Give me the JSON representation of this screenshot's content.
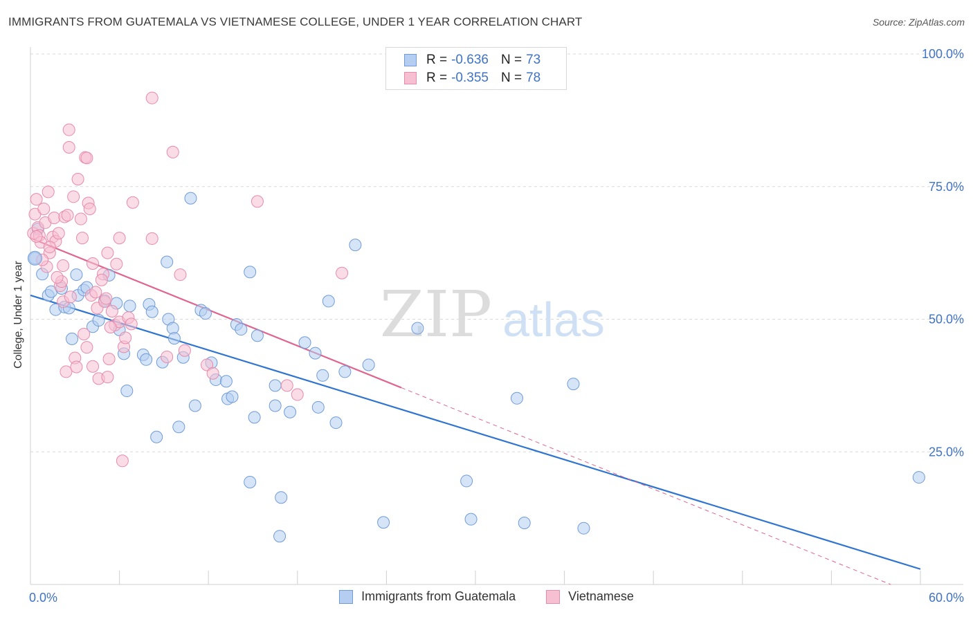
{
  "header": {
    "title": "IMMIGRANTS FROM GUATEMALA VS VIETNAMESE COLLEGE, UNDER 1 YEAR CORRELATION CHART",
    "source": "Source: ZipAtlas.com"
  },
  "watermark": {
    "zip": "ZIP",
    "atlas": "atlas"
  },
  "legend": {
    "rows": [
      {
        "r_label": "R =",
        "r_value": "-0.636",
        "n_label": "N =",
        "n_value": "73"
      },
      {
        "r_label": "R =",
        "r_value": "-0.355",
        "n_label": "N =",
        "n_value": "78"
      }
    ]
  },
  "colors": {
    "blue_fill": "#b4cdf0",
    "blue_stroke": "#6f9bd8",
    "blue_line": "#2f74d0",
    "pink_fill": "#f6c0d2",
    "pink_stroke": "#e88aaa",
    "pink_line": "#e0648e",
    "axis_text": "#3f73c4",
    "grid": "#d9d9d9"
  },
  "chart_data": {
    "type": "scatter",
    "title": "IMMIGRANTS FROM GUATEMALA VS VIETNAMESE COLLEGE, UNDER 1 YEAR CORRELATION CHART",
    "xlabel": "",
    "ylabel": "College, Under 1 year",
    "xlim": [
      0,
      60
    ],
    "ylim": [
      0,
      100
    ],
    "x_tick_labels": [
      "0.0%",
      "60.0%"
    ],
    "y_tick_labels": [
      "100.0%",
      "75.0%",
      "50.0%",
      "25.0%"
    ],
    "y_ticks": [
      100,
      75,
      50,
      25
    ],
    "series": [
      {
        "name": "Immigrants from Guatemala",
        "color": "blue",
        "trend": {
          "x": [
            0,
            60
          ],
          "y": [
            54.5,
            2.9
          ],
          "dashed_from": null
        },
        "points": [
          [
            0.3,
            61.5
          ],
          [
            0.5,
            67
          ],
          [
            0.8,
            58.5
          ],
          [
            1.2,
            54.5
          ],
          [
            1.4,
            55.2
          ],
          [
            1.7,
            51.8
          ],
          [
            2.1,
            55.8
          ],
          [
            2.3,
            52.3
          ],
          [
            2.6,
            52.1
          ],
          [
            2.8,
            46.3
          ],
          [
            3.2,
            54.5
          ],
          [
            3.1,
            58.4
          ],
          [
            3.6,
            55.5
          ],
          [
            3.8,
            56
          ],
          [
            4.2,
            48.6
          ],
          [
            4.6,
            49.8
          ],
          [
            5.0,
            53.5
          ],
          [
            5.3,
            58.3
          ],
          [
            5.8,
            53
          ],
          [
            6.0,
            48
          ],
          [
            6.3,
            43.5
          ],
          [
            6.5,
            36.5
          ],
          [
            6.7,
            52.5
          ],
          [
            7.6,
            43.3
          ],
          [
            7.8,
            42.4
          ],
          [
            8.0,
            52.8
          ],
          [
            8.2,
            51.4
          ],
          [
            8.5,
            27.8
          ],
          [
            8.9,
            41.9
          ],
          [
            9.2,
            60.8
          ],
          [
            9.3,
            50
          ],
          [
            9.6,
            48.3
          ],
          [
            9.7,
            46.4
          ],
          [
            10.0,
            29.7
          ],
          [
            10.3,
            42.8
          ],
          [
            10.8,
            72.8
          ],
          [
            11.1,
            33.7
          ],
          [
            11.5,
            51.7
          ],
          [
            11.8,
            51.1
          ],
          [
            12.2,
            41.8
          ],
          [
            12.5,
            38.6
          ],
          [
            13.2,
            38.3
          ],
          [
            13.3,
            35
          ],
          [
            13.6,
            35.4
          ],
          [
            13.9,
            49
          ],
          [
            14.2,
            48.1
          ],
          [
            14.8,
            58.9
          ],
          [
            15.1,
            31.5
          ],
          [
            15.3,
            46.9
          ],
          [
            14.8,
            19.3
          ],
          [
            16.5,
            37.5
          ],
          [
            16.5,
            33.7
          ],
          [
            16.8,
            9.1
          ],
          [
            16.9,
            16.4
          ],
          [
            17.5,
            32.5
          ],
          [
            18.5,
            45.6
          ],
          [
            19.2,
            43.6
          ],
          [
            19.4,
            33.4
          ],
          [
            19.7,
            39.4
          ],
          [
            20.1,
            53.4
          ],
          [
            20.6,
            30.5
          ],
          [
            21.2,
            40.1
          ],
          [
            21.9,
            64
          ],
          [
            22.8,
            41.4
          ],
          [
            23.8,
            11.7
          ],
          [
            26.1,
            48.3
          ],
          [
            29.4,
            19.5
          ],
          [
            29.7,
            12.3
          ],
          [
            32.8,
            35.1
          ],
          [
            33.3,
            11.6
          ],
          [
            36.6,
            37.8
          ],
          [
            37.3,
            10.6
          ],
          [
            59.9,
            20.2
          ]
        ]
      },
      {
        "name": "Vietnamese",
        "color": "pink",
        "trend": {
          "x": [
            0,
            25,
            58
          ],
          "y": [
            65.3,
            37.1,
            0
          ],
          "dashed_from": 25
        },
        "points": [
          [
            0.2,
            66.2
          ],
          [
            0.3,
            69.8
          ],
          [
            0.4,
            72.6
          ],
          [
            0.5,
            67.3
          ],
          [
            0.6,
            65.8
          ],
          [
            0.7,
            64.5
          ],
          [
            0.9,
            70.8
          ],
          [
            1.0,
            68.2
          ],
          [
            1.1,
            59.9
          ],
          [
            1.2,
            74
          ],
          [
            1.3,
            62.5
          ],
          [
            1.5,
            65.5
          ],
          [
            1.6,
            69.1
          ],
          [
            1.7,
            64.7
          ],
          [
            1.9,
            66.2
          ],
          [
            2.0,
            56.3
          ],
          [
            2.1,
            57.1
          ],
          [
            2.2,
            60.1
          ],
          [
            2.2,
            53.3
          ],
          [
            2.3,
            69.3
          ],
          [
            2.4,
            40.1
          ],
          [
            2.5,
            69.6
          ],
          [
            2.6,
            85.7
          ],
          [
            2.6,
            82.4
          ],
          [
            2.9,
            73.1
          ],
          [
            3.0,
            42.7
          ],
          [
            3.1,
            41
          ],
          [
            3.2,
            76.4
          ],
          [
            3.4,
            68.9
          ],
          [
            3.5,
            65.3
          ],
          [
            3.6,
            47.2
          ],
          [
            3.7,
            80.5
          ],
          [
            3.8,
            80.4
          ],
          [
            3.9,
            71.9
          ],
          [
            4.0,
            70.8
          ],
          [
            4.1,
            54.5
          ],
          [
            4.2,
            60.5
          ],
          [
            4.2,
            41.1
          ],
          [
            4.4,
            55.1
          ],
          [
            4.5,
            52.1
          ],
          [
            4.6,
            38.8
          ],
          [
            4.9,
            58.5
          ],
          [
            5.0,
            53.3
          ],
          [
            5.1,
            53.9
          ],
          [
            5.2,
            62.5
          ],
          [
            5.2,
            39.1
          ],
          [
            5.3,
            42.5
          ],
          [
            5.5,
            51.5
          ],
          [
            5.7,
            48.9
          ],
          [
            5.8,
            60.4
          ],
          [
            6.0,
            49.5
          ],
          [
            6.0,
            65.3
          ],
          [
            6.2,
            23.3
          ],
          [
            6.3,
            44.8
          ],
          [
            6.4,
            46.5
          ],
          [
            6.6,
            50.3
          ],
          [
            6.8,
            49.1
          ],
          [
            6.9,
            72
          ],
          [
            8.2,
            91.7
          ],
          [
            8.2,
            65.2
          ],
          [
            9.2,
            42.9
          ],
          [
            9.6,
            81.5
          ],
          [
            10.1,
            58.4
          ],
          [
            10.4,
            44.1
          ],
          [
            11.9,
            41.4
          ],
          [
            12.3,
            39.8
          ],
          [
            15.3,
            72.2
          ],
          [
            17.3,
            37.5
          ],
          [
            18.0,
            35.8
          ],
          [
            21.0,
            58.7
          ],
          [
            1.3,
            63.6
          ],
          [
            2.7,
            54.2
          ],
          [
            3.8,
            44.7
          ],
          [
            0.8,
            61.2
          ],
          [
            1.8,
            57.9
          ],
          [
            0.4,
            65.6
          ],
          [
            4.8,
            57.4
          ],
          [
            5.4,
            48.5
          ]
        ]
      }
    ]
  },
  "bottom_legend": {
    "items": [
      {
        "label": "Immigrants from Guatemala"
      },
      {
        "label": "Vietnamese"
      }
    ]
  }
}
